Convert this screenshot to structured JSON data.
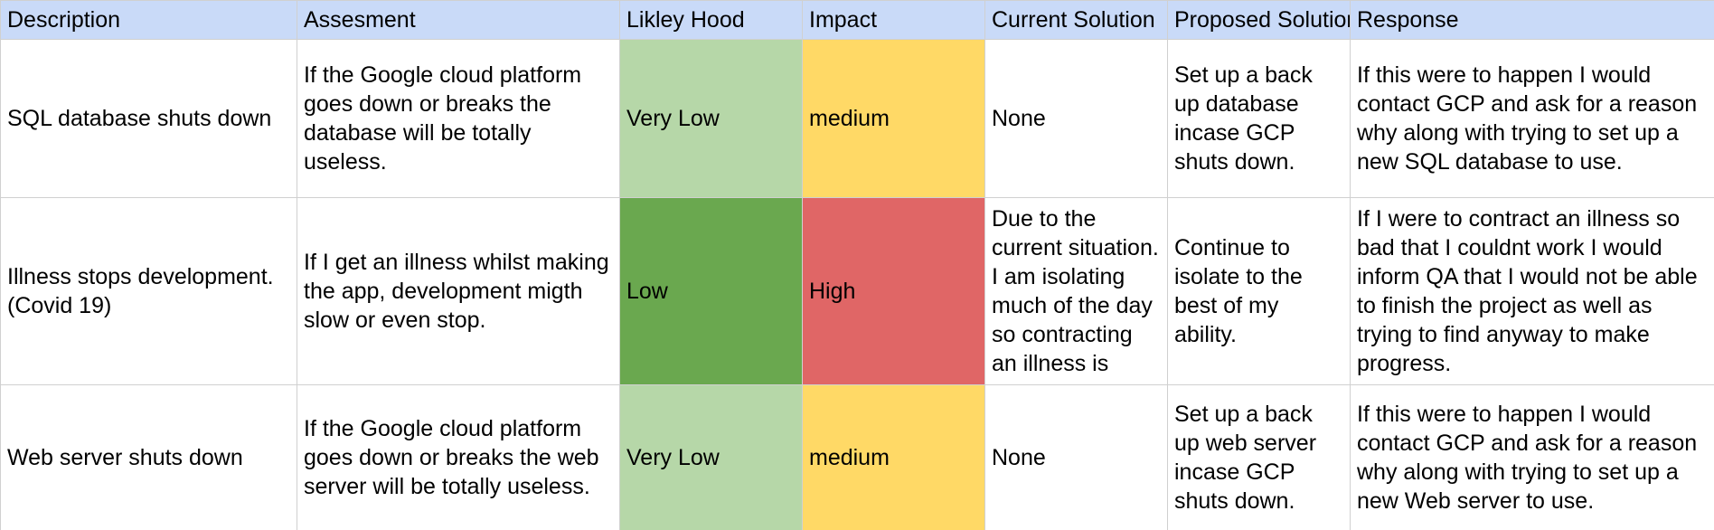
{
  "colors": {
    "header_bg": "#c9daf8",
    "very_low": "#b6d7a8",
    "low": "#6aa84f",
    "medium": "#ffd966",
    "high": "#e06666"
  },
  "headers": [
    "Description",
    "Assesment",
    "Likley Hood",
    "Impact",
    "Current Solution",
    "Proposed Solution",
    "Response"
  ],
  "rows": [
    {
      "description": "SQL database shuts down",
      "assessment": "If the Google cloud platform goes down or breaks the database will be totally useless.",
      "likelihood": "Very Low",
      "impact": "medium",
      "current_solution": "None",
      "proposed_solution": "Set up a back up database incase GCP shuts down.",
      "response": "If this were to happen I would contact GCP and ask for a reason why along with trying to set up a new SQL database to use."
    },
    {
      "description": "Illness stops development. (Covid 19)",
      "assessment": "If I get an illness whilst making the app, development migth slow or even stop.",
      "likelihood": "Low",
      "impact": "High",
      "current_solution": "Due to the current situation. I am isolating much of the day so contracting an illness is",
      "proposed_solution": "Continue to isolate to the best of my ability.",
      "response": "If I were to contract an illness so bad that I couldnt work I would inform QA that I would not be able to finish the project as well as trying to find anyway to make progress."
    },
    {
      "description": "Web server shuts down",
      "assessment": "If the Google cloud platform goes down or breaks the web server will be totally useless.",
      "likelihood": "Very Low",
      "impact": "medium",
      "current_solution": "None",
      "proposed_solution": "Set up a back up web server incase GCP shuts down.",
      "response": "If this were to happen I would contact GCP and ask for a reason why along with trying to set up a new Web server to use."
    }
  ]
}
